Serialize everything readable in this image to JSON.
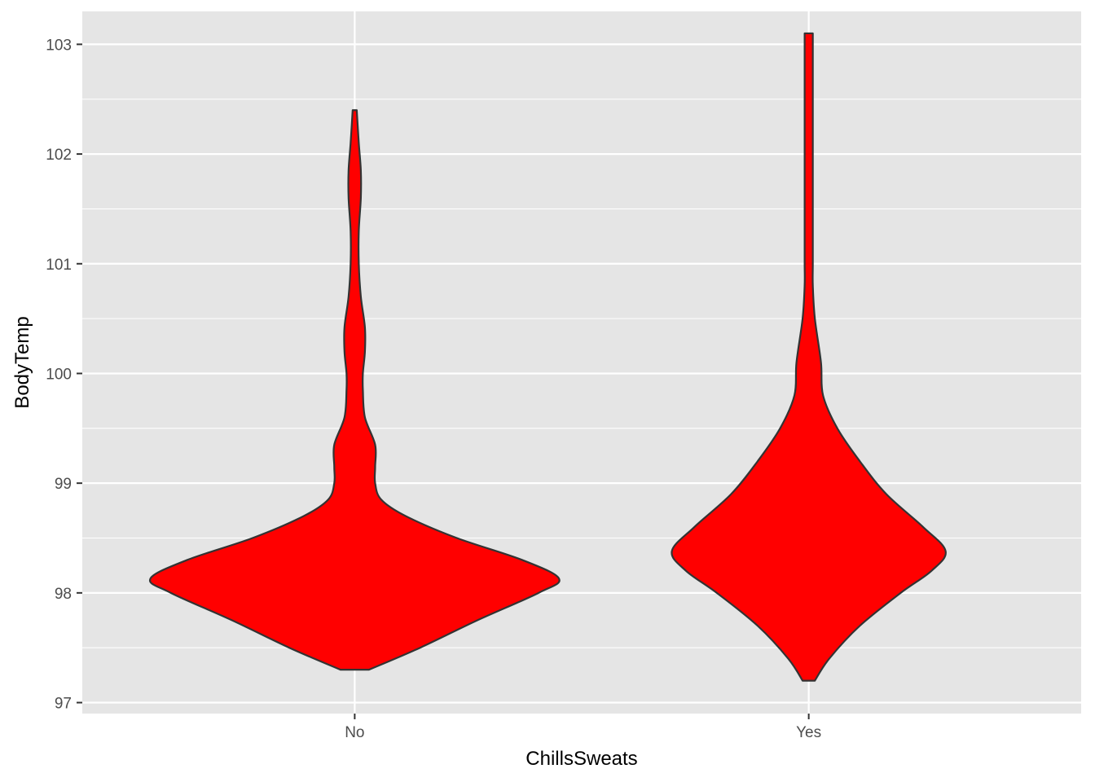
{
  "chart_data": {
    "type": "violin",
    "title": "",
    "xlabel": "ChillsSweats",
    "ylabel": "BodyTemp",
    "categories": [
      "No",
      "Yes"
    ],
    "ylim": [
      96.9,
      103.3
    ],
    "y_ticks": [
      97,
      98,
      99,
      100,
      101,
      102,
      103
    ],
    "y_tick_labels": [
      "97",
      "98",
      "99",
      "100",
      "101",
      "102",
      "103"
    ],
    "grid": true,
    "fill_color": "#ff0000",
    "outline_color": "#333333",
    "panel_background": "#e5e5e5",
    "grid_color": "#ffffff",
    "series": [
      {
        "category": "No",
        "range": [
          97.3,
          102.4
        ],
        "density": [
          [
            97.3,
            0.07
          ],
          [
            97.5,
            0.32
          ],
          [
            97.75,
            0.6
          ],
          [
            98.0,
            0.9
          ],
          [
            98.13,
            1.0
          ],
          [
            98.3,
            0.82
          ],
          [
            98.5,
            0.5
          ],
          [
            98.7,
            0.25
          ],
          [
            98.85,
            0.13
          ],
          [
            99.0,
            0.1
          ],
          [
            99.15,
            0.1
          ],
          [
            99.35,
            0.1
          ],
          [
            99.6,
            0.05
          ],
          [
            99.85,
            0.04
          ],
          [
            100.0,
            0.04
          ],
          [
            100.2,
            0.05
          ],
          [
            100.42,
            0.05
          ],
          [
            100.7,
            0.03
          ],
          [
            101.0,
            0.02
          ],
          [
            101.3,
            0.02
          ],
          [
            101.6,
            0.03
          ],
          [
            101.85,
            0.03
          ],
          [
            102.1,
            0.02
          ],
          [
            102.4,
            0.01
          ]
        ]
      },
      {
        "category": "Yes",
        "range": [
          97.2,
          103.1
        ],
        "density": [
          [
            97.2,
            0.03
          ],
          [
            97.4,
            0.1
          ],
          [
            97.7,
            0.25
          ],
          [
            98.0,
            0.45
          ],
          [
            98.2,
            0.6
          ],
          [
            98.38,
            0.67
          ],
          [
            98.6,
            0.56
          ],
          [
            98.9,
            0.38
          ],
          [
            99.2,
            0.25
          ],
          [
            99.5,
            0.14
          ],
          [
            99.8,
            0.07
          ],
          [
            100.1,
            0.06
          ],
          [
            100.5,
            0.03
          ],
          [
            100.8,
            0.02
          ],
          [
            101.0,
            0.02
          ],
          [
            101.3,
            0.02
          ],
          [
            101.6,
            0.02
          ],
          [
            101.9,
            0.02
          ],
          [
            102.2,
            0.02
          ],
          [
            102.5,
            0.02
          ],
          [
            102.8,
            0.02
          ],
          [
            103.1,
            0.02
          ]
        ]
      }
    ]
  }
}
